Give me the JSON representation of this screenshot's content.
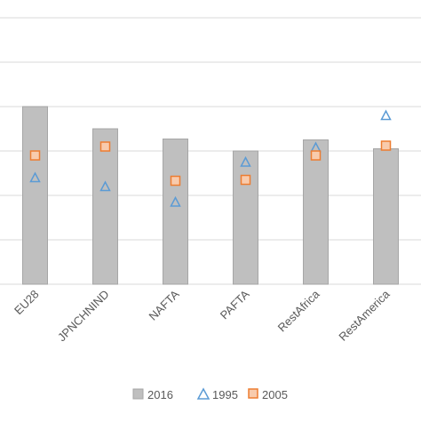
{
  "chart_data": {
    "type": "bar",
    "categories": [
      "EU28",
      "JPNCHNIND",
      "NAFTA",
      "PAFTA",
      "RestAfrica",
      "RestAmerica"
    ],
    "ylim": [
      0,
      6
    ],
    "grid": true,
    "legend_position": "bottom",
    "series": [
      {
        "name": "2016",
        "kind": "bar",
        "color": "#bfbfbf",
        "values": [
          4.0,
          3.5,
          3.27,
          3.0,
          3.25,
          3.05
        ]
      },
      {
        "name": "1995",
        "kind": "triangle-marker",
        "color": "#5b9bd5",
        "values": [
          2.4,
          2.2,
          1.85,
          2.75,
          3.08,
          3.8
        ]
      },
      {
        "name": "2005",
        "kind": "square-marker",
        "color": "#ed7d31",
        "values": [
          2.9,
          3.1,
          2.33,
          2.35,
          2.9,
          3.12
        ]
      }
    ]
  }
}
